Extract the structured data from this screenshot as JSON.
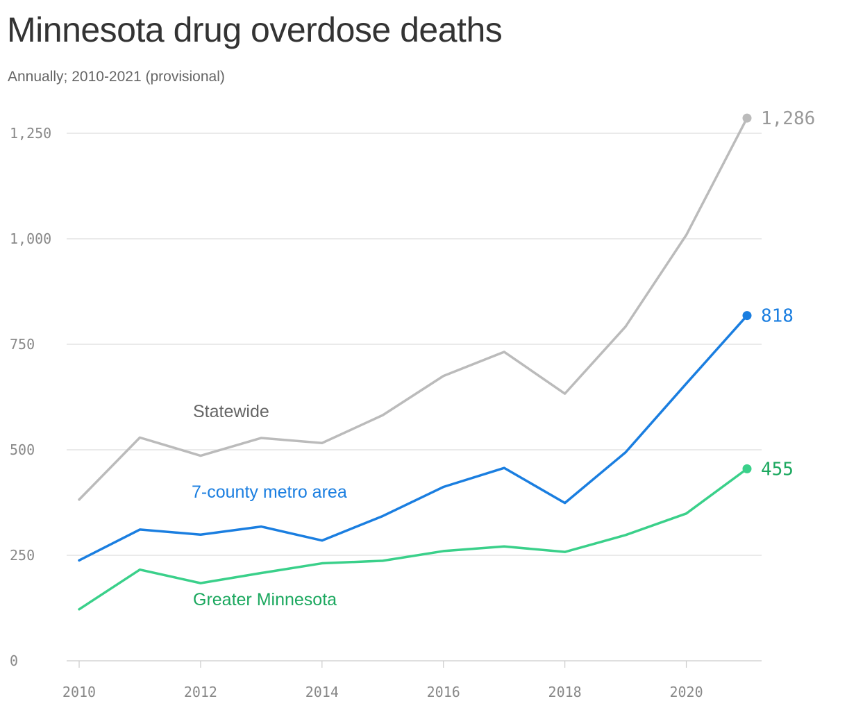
{
  "chart_data": {
    "type": "line",
    "title": "Minnesota drug overdose deaths",
    "subtitle": "Annually; 2010-2021 (provisional)",
    "x": [
      2010,
      2011,
      2012,
      2013,
      2014,
      2015,
      2016,
      2017,
      2018,
      2019,
      2020,
      2021
    ],
    "x_ticks": [
      "2010",
      "2012",
      "2014",
      "2016",
      "2018",
      "2020"
    ],
    "y_ticks": [
      "0",
      "250",
      "500",
      "750",
      "1,000",
      "1,250"
    ],
    "ylim": [
      0,
      1250
    ],
    "grid": true,
    "series": [
      {
        "name": "Statewide",
        "color": "#bbbbbb",
        "label_color": "#666666",
        "values": [
          382,
          529,
          486,
          528,
          516,
          582,
          675,
          732,
          633,
          792,
          1009,
          1286
        ],
        "end_label": "1,286",
        "end_label_color": "#999999"
      },
      {
        "name": "7-county metro area",
        "color": "#1a7ee0",
        "label_color": "#1a7ee0",
        "values": [
          238,
          311,
          299,
          318,
          285,
          343,
          412,
          457,
          374,
          494,
          657,
          818
        ],
        "end_label": "818",
        "end_label_color": "#1a7ee0"
      },
      {
        "name": "Greater Minnesota",
        "color": "#3ad08a",
        "label_color": "#1ca85f",
        "values": [
          122,
          216,
          184,
          208,
          231,
          237,
          260,
          271,
          258,
          298,
          349,
          455
        ],
        "end_label": "455",
        "end_label_color": "#1ca85f"
      }
    ]
  }
}
